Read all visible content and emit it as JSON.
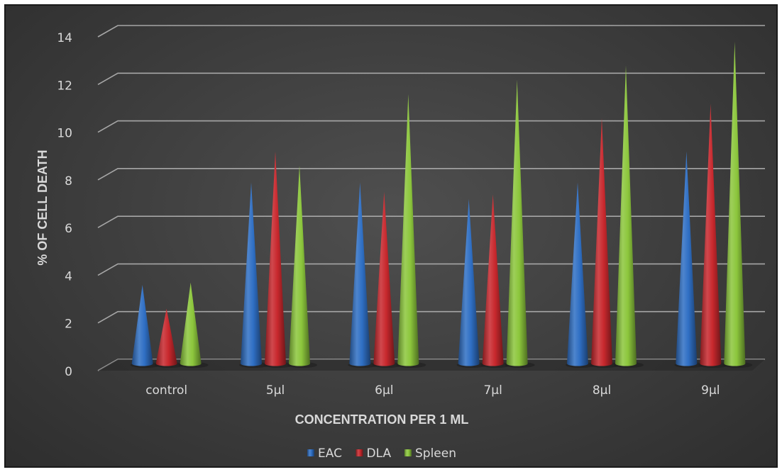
{
  "chart_data": {
    "type": "bar",
    "style": "3d-cone",
    "title": "",
    "xlabel": "CONCENTRATION PER 1 ML",
    "ylabel": "% OF CELL DEATH",
    "ylim": [
      0,
      14
    ],
    "yticks": [
      0,
      2,
      4,
      6,
      8,
      10,
      12,
      14
    ],
    "grid": true,
    "legend_position": "bottom",
    "categories": [
      "control",
      "5µl",
      "6µl",
      "7µl",
      "8µl",
      "9µl"
    ],
    "series": [
      {
        "name": "EAC",
        "color": "#2f6fc4",
        "values": [
          3.3,
          7.6,
          7.6,
          6.9,
          7.6,
          8.9
        ]
      },
      {
        "name": "DLA",
        "color": "#c8282d",
        "values": [
          2.3,
          8.9,
          7.2,
          7.1,
          10.3,
          10.9
        ]
      },
      {
        "name": "Spleen",
        "color": "#8cc63c",
        "values": [
          3.4,
          8.3,
          11.3,
          11.9,
          12.5,
          13.5
        ]
      }
    ]
  }
}
